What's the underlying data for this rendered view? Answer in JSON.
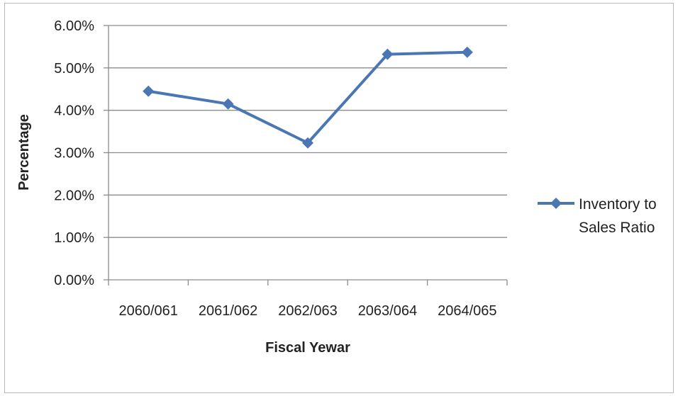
{
  "chart_data": {
    "type": "line",
    "title": "",
    "xlabel": "Fiscal Yewar",
    "ylabel": "Percentage",
    "categories": [
      "2060/061",
      "2061/062",
      "2062/063",
      "2063/064",
      "2064/065"
    ],
    "series": [
      {
        "name": "Inventory to Sales Ratio",
        "values": [
          4.45,
          4.15,
          3.23,
          5.32,
          5.37
        ],
        "color": "#4a76b4",
        "marker": "diamond"
      }
    ],
    "ylim": [
      0,
      6
    ],
    "yticks": [
      0,
      1,
      2,
      3,
      4,
      5,
      6
    ],
    "ytick_labels": [
      "0.00%",
      "1.00%",
      "2.00%",
      "3.00%",
      "4.00%",
      "5.00%",
      "6.00%"
    ],
    "grid": true,
    "legend_position": "right",
    "legend_lines": [
      "Inventory to",
      "Sales Ratio"
    ]
  }
}
